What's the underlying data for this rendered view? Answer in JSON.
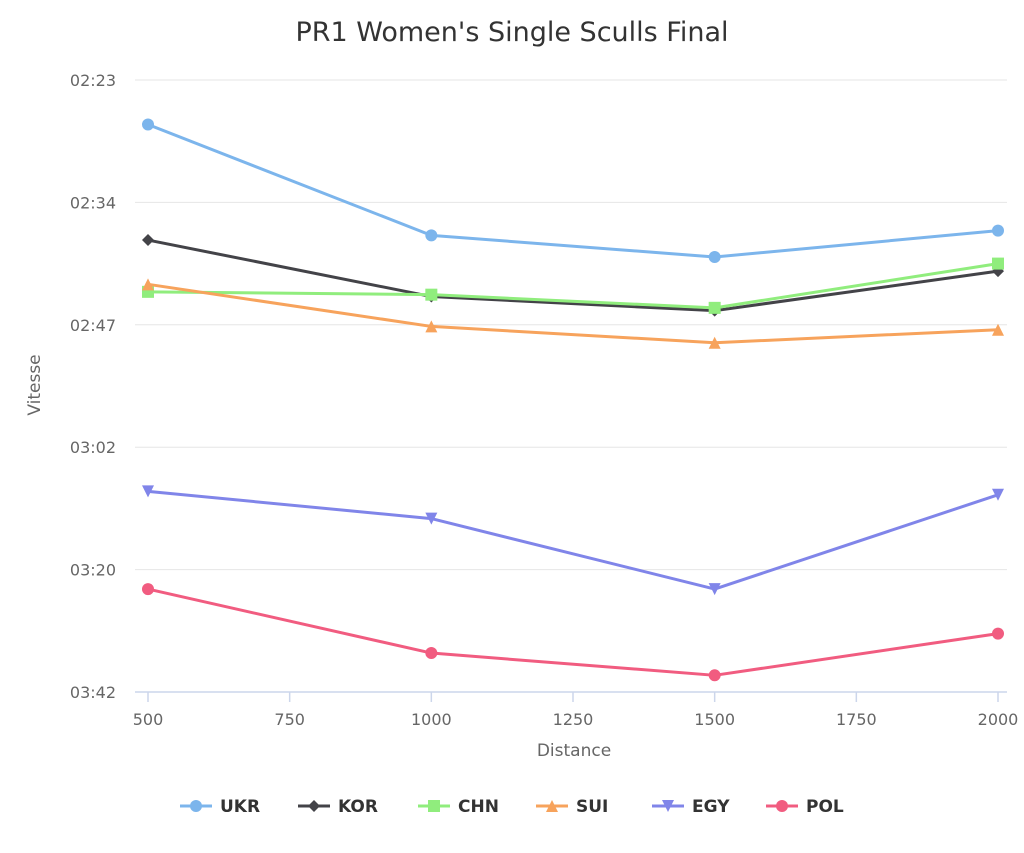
{
  "chart_data": {
    "type": "line",
    "title": "PR1 Women's Single Sculls Final",
    "xlabel": "Distance",
    "ylabel": "Vitesse",
    "x": [
      500,
      1000,
      1500,
      2000
    ],
    "xticks": [
      500,
      750,
      1000,
      1250,
      1500,
      1750,
      2000
    ],
    "xlim": [
      500,
      2000
    ],
    "y_unit": "seconds",
    "y_reversed": true,
    "ylim": [
      143,
      222
    ],
    "yticks": [
      {
        "value": 143,
        "label": "02:23"
      },
      {
        "value": 154,
        "label": "02:34"
      },
      {
        "value": 167,
        "label": "02:47"
      },
      {
        "value": 182,
        "label": "03:02"
      },
      {
        "value": 200,
        "label": "03:20"
      },
      {
        "value": 222,
        "label": "03:42"
      }
    ],
    "grid": true,
    "legend_position": "bottom",
    "series": [
      {
        "name": "UKR",
        "color": "#7cb5ec",
        "marker": "circle",
        "values": [
          147.0,
          157.5,
          159.8,
          157.0
        ]
      },
      {
        "name": "KOR",
        "color": "#434348",
        "marker": "diamond",
        "values": [
          158.0,
          164.0,
          165.5,
          161.3
        ]
      },
      {
        "name": "CHN",
        "color": "#90ed7d",
        "marker": "square",
        "values": [
          163.5,
          163.8,
          165.2,
          160.5
        ]
      },
      {
        "name": "SUI",
        "color": "#f7a35c",
        "marker": "triangle",
        "values": [
          162.7,
          167.2,
          169.2,
          167.6
        ]
      },
      {
        "name": "EGY",
        "color": "#8085e9",
        "marker": "triangle-down",
        "values": [
          188.5,
          192.5,
          203.5,
          189.0
        ]
      },
      {
        "name": "POL",
        "color": "#f15c80",
        "marker": "circle",
        "values": [
          203.5,
          215.0,
          219.0,
          211.5
        ]
      }
    ]
  }
}
